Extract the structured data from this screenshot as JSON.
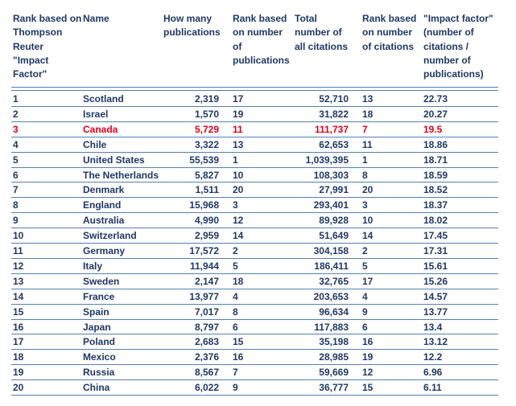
{
  "table": {
    "header": [
      [
        "Rank based on",
        "Thompson",
        "Reuter",
        "\"Impact",
        "Factor\""
      ],
      [
        "Name"
      ],
      [
        "How many",
        "publications"
      ],
      [
        "Rank based",
        "on number",
        "of",
        "publications"
      ],
      [
        "Total",
        "number of",
        "all citations"
      ],
      [
        "Rank based",
        "on number",
        "of citations"
      ],
      [
        "\"Impact factor\"",
        "(number of",
        "citations /",
        "number of",
        "publications)"
      ]
    ],
    "rows": [
      [
        "1",
        "Scotland",
        "2,319",
        "17",
        "52,710",
        "13",
        "22.73"
      ],
      [
        "2",
        "Israel",
        "1,570",
        "19",
        "31,822",
        "18",
        "20.27"
      ],
      [
        "3",
        "Canada",
        "5,729",
        "11",
        "111,737",
        "7",
        "19.5"
      ],
      [
        "4",
        "Chile",
        "3,322",
        "13",
        "62,653",
        "11",
        "18.86"
      ],
      [
        "5",
        "United States",
        "55,539",
        "1",
        "1,039,395",
        "1",
        "18.71"
      ],
      [
        "6",
        "The Netherlands",
        "5,827",
        "10",
        "108,303",
        "8",
        "18.59"
      ],
      [
        "7",
        "Denmark",
        "1,511",
        "20",
        "27,991",
        "20",
        "18.52"
      ],
      [
        "8",
        "England",
        "15,968",
        "3",
        "293,401",
        "3",
        "18.37"
      ],
      [
        "9",
        "Australia",
        "4,990",
        "12",
        "89,928",
        "10",
        "18.02"
      ],
      [
        "10",
        "Switzerland",
        "2,959",
        "14",
        "51,649",
        "14",
        "17.45"
      ],
      [
        "11",
        "Germany",
        "17,572",
        "2",
        "304,158",
        "2",
        "17.31"
      ],
      [
        "12",
        "Italy",
        "11,944",
        "5",
        "186,411",
        "5",
        "15.61"
      ],
      [
        "13",
        "Sweden",
        "2,147",
        "18",
        "32,765",
        "17",
        "15.26"
      ],
      [
        "14",
        "France",
        "13,977",
        "4",
        "203,653",
        "4",
        "14.57"
      ],
      [
        "15",
        "Spain",
        "7,017",
        "8",
        "96,634",
        "9",
        "13.77"
      ],
      [
        "16",
        "Japan",
        "8,797",
        "6",
        "117,883",
        "6",
        "13.4"
      ],
      [
        "17",
        "Poland",
        "2,683",
        "15",
        "35,198",
        "16",
        "13.12"
      ],
      [
        "18",
        "Mexico",
        "2,376",
        "16",
        "28,985",
        "19",
        "12.2"
      ],
      [
        "19",
        "Russia",
        "8,567",
        "7",
        "59,669",
        "12",
        "6.96"
      ],
      [
        "20",
        "China",
        "6,022",
        "9",
        "36,777",
        "15",
        "6.11"
      ]
    ],
    "highlight": {
      "row": 2,
      "color": "#e0001b"
    }
  }
}
